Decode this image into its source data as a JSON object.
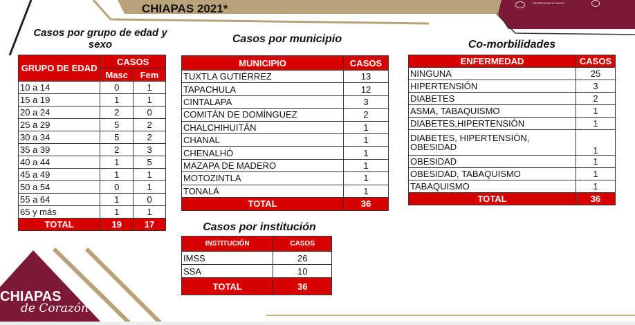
{
  "header": {
    "title": "CHIAPAS 2021*",
    "logo_text": "SECRETARÍA DE SALUD"
  },
  "colors": {
    "red": "#d90000",
    "maroon": "#7c1a36",
    "gold": "#b7a27a"
  },
  "edad": {
    "title": "Casos por grupo de edad y sexo",
    "h_group": "GRUPO DE EDAD",
    "h_casos": "CASOS",
    "h_masc": "Masc",
    "h_fem": "Fem",
    "rows": [
      [
        "10 a 14",
        "0",
        "1"
      ],
      [
        "15 a 19",
        "1",
        "1"
      ],
      [
        "20 a 24",
        "2",
        "0"
      ],
      [
        "25 a 29",
        "5",
        "2"
      ],
      [
        "30 a 34",
        "5",
        "2"
      ],
      [
        "35 a 39",
        "2",
        "3"
      ],
      [
        "40 a 44",
        "1",
        "5"
      ],
      [
        "45 a 49",
        "1",
        "1"
      ],
      [
        "50 a 54",
        "0",
        "1"
      ],
      [
        "55 a 64",
        "1",
        "0"
      ],
      [
        "65 y más",
        "1",
        "1"
      ]
    ],
    "total_label": "TOTAL",
    "total_masc": "19",
    "total_fem": "17"
  },
  "municipio": {
    "title": "Casos por municipio",
    "h_mun": "MUNICIPIO",
    "h_casos": "CASOS",
    "rows": [
      [
        "TUXTLA GUTIÉRREZ",
        "13"
      ],
      [
        "TAPACHULA",
        "12"
      ],
      [
        "CINTALAPA",
        "3"
      ],
      [
        "COMITÁN DE DOMÍNGUEZ",
        "2"
      ],
      [
        "CHALCHIHUITÁN",
        "1"
      ],
      [
        "CHANAL",
        "1"
      ],
      [
        "CHENALHÓ",
        "1"
      ],
      [
        "MAZAPA DE MADERO",
        "1"
      ],
      [
        "MOTOZINTLA",
        "1"
      ],
      [
        "TONALÁ",
        "1"
      ]
    ],
    "total_label": "TOTAL",
    "total": "36"
  },
  "comorb": {
    "title": "Co-morbilidades",
    "h_enf": "ENFERMEDAD",
    "h_casos": "CASOS",
    "rows": [
      [
        "NINGUNA",
        "25"
      ],
      [
        "HIPERTENSIÓN",
        "3"
      ],
      [
        "DIABETES",
        "2"
      ],
      [
        "ASMA, TABAQUISMO",
        "1"
      ],
      [
        "DIABETES,HIPERTENSIÓN",
        "1"
      ],
      [
        "DIABETES, HIPERTENSIÓN, OBESIDAD",
        "1"
      ],
      [
        "OBESIDAD",
        "1"
      ],
      [
        "OBESIDAD, TABAQUISMO",
        "1"
      ],
      [
        "TABAQUISMO",
        "1"
      ]
    ],
    "total_label": "TOTAL",
    "total": "36"
  },
  "institucion": {
    "title": "Casos por institución",
    "h_inst": "INSTITUCIÓN",
    "h_casos": "CASOS",
    "rows": [
      [
        "IMSS",
        "26"
      ],
      [
        "SSA",
        "10"
      ]
    ],
    "total_label": "TOTAL",
    "total": "36"
  },
  "brand": {
    "line1": "CHIAPAS",
    "line2": "de Corazón"
  }
}
